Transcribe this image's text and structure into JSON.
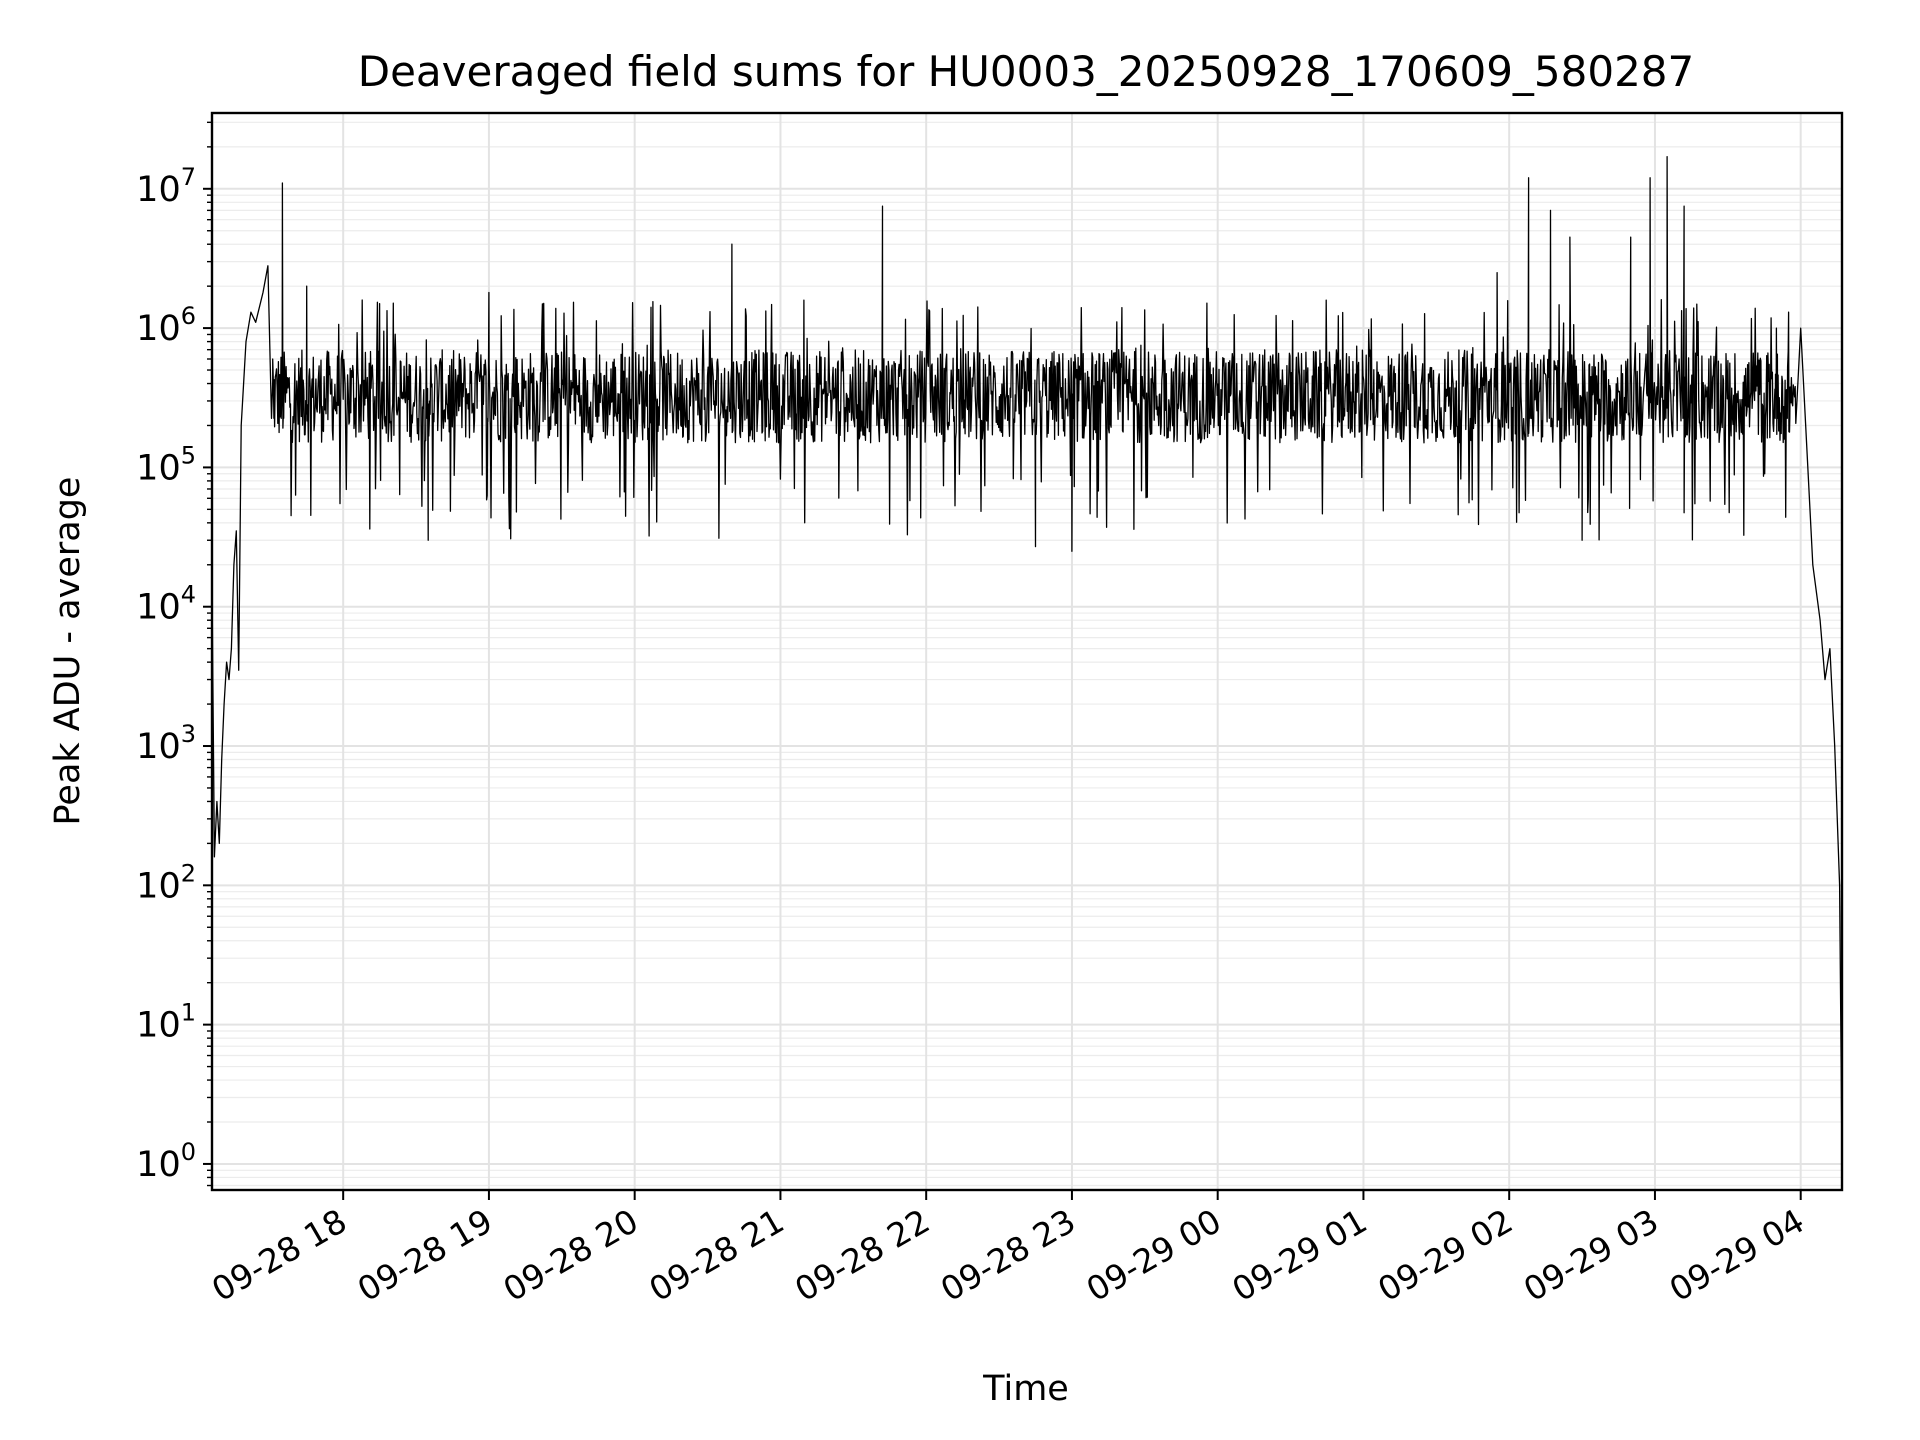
{
  "chart_data": {
    "type": "line",
    "title": "Deaveraged field sums for HU0003_20250928_170609_580287",
    "xlabel": "Time",
    "ylabel": "Peak ADU - average",
    "yscale": "log",
    "ylim": [
      0.65,
      35000000
    ],
    "xlim": [
      "09-28 17:06",
      "09-29 04:17"
    ],
    "grid": true,
    "color": "#000000",
    "y_tick_labels": [
      {
        "mantissa": "10",
        "exp": "0",
        "value": 1
      },
      {
        "mantissa": "10",
        "exp": "1",
        "value": 10
      },
      {
        "mantissa": "10",
        "exp": "2",
        "value": 100
      },
      {
        "mantissa": "10",
        "exp": "3",
        "value": 1000
      },
      {
        "mantissa": "10",
        "exp": "4",
        "value": 10000
      },
      {
        "mantissa": "10",
        "exp": "5",
        "value": 100000
      },
      {
        "mantissa": "10",
        "exp": "6",
        "value": 1000000
      },
      {
        "mantissa": "10",
        "exp": "7",
        "value": 10000000
      }
    ],
    "x_tick_labels": [
      {
        "label": "09-28 18",
        "value": "09-28 18:00"
      },
      {
        "label": "09-28 19",
        "value": "09-28 19:00"
      },
      {
        "label": "09-28 20",
        "value": "09-28 20:00"
      },
      {
        "label": "09-28 21",
        "value": "09-28 21:00"
      },
      {
        "label": "09-28 22",
        "value": "09-28 22:00"
      },
      {
        "label": "09-28 23",
        "value": "09-28 23:00"
      },
      {
        "label": "09-29 00",
        "value": "09-29 00:00"
      },
      {
        "label": "09-29 01",
        "value": "09-29 01:00"
      },
      {
        "label": "09-29 02",
        "value": "09-29 02:00"
      },
      {
        "label": "09-29 03",
        "value": "09-29 03:00"
      },
      {
        "label": "09-29 04",
        "value": "09-29 04:00"
      }
    ],
    "series": [
      {
        "baseline_band": [
          150000,
          700000
        ],
        "points": [
          [
            "09-28 17:06",
            15000
          ],
          [
            "09-28 17:07",
            160
          ],
          [
            "09-28 17:08",
            400
          ],
          [
            "09-28 17:09",
            200
          ],
          [
            "09-28 17:10",
            800
          ],
          [
            "09-28 17:11",
            2000
          ],
          [
            "09-28 17:12",
            4000
          ],
          [
            "09-28 17:13",
            3000
          ],
          [
            "09-28 17:14",
            5000
          ],
          [
            "09-28 17:15",
            20000
          ],
          [
            "09-28 17:16",
            35000
          ],
          [
            "09-28 17:17",
            3500
          ],
          [
            "09-28 17:18",
            200000
          ],
          [
            "09-28 17:20",
            800000
          ],
          [
            "09-28 17:22",
            1300000
          ],
          [
            "09-28 17:24",
            1100000
          ],
          [
            "09-28 17:27",
            1800000
          ],
          [
            "09-28 17:29",
            2800000
          ],
          [
            "09-28 17:31",
            600000
          ],
          [
            "09-28 17:35",
            11000000
          ],
          [
            "09-28 17:45",
            2000000
          ],
          [
            "09-28 18:15",
            1500000
          ],
          [
            "09-28 18:35",
            30000
          ],
          [
            "09-28 19:00",
            1800000
          ],
          [
            "09-28 20:40",
            4000000
          ],
          [
            "09-28 21:10",
            40000
          ],
          [
            "09-28 21:42",
            7500000
          ],
          [
            "09-28 22:45",
            27000
          ],
          [
            "09-28 23:00",
            25000
          ],
          [
            "09-29 01:55",
            2500000
          ],
          [
            "09-29 02:08",
            12000000
          ],
          [
            "09-29 02:17",
            7000000
          ],
          [
            "09-29 02:25",
            4500000
          ],
          [
            "09-29 02:30",
            30000
          ],
          [
            "09-29 02:50",
            4500000
          ],
          [
            "09-29 02:58",
            12000000
          ],
          [
            "09-29 03:05",
            17000000
          ],
          [
            "09-29 03:12",
            7500000
          ],
          [
            "09-29 03:50",
            1000000
          ],
          [
            "09-29 03:55",
            1300000
          ],
          [
            "09-29 04:00",
            1000000
          ],
          [
            "09-29 04:05",
            20000
          ],
          [
            "09-29 04:08",
            8000
          ],
          [
            "09-29 04:10",
            3000
          ],
          [
            "09-29 04:12",
            5000
          ],
          [
            "09-29 04:14",
            1000
          ],
          [
            "09-29 04:16",
            100
          ],
          [
            "09-29 04:17",
            1
          ]
        ]
      }
    ]
  }
}
